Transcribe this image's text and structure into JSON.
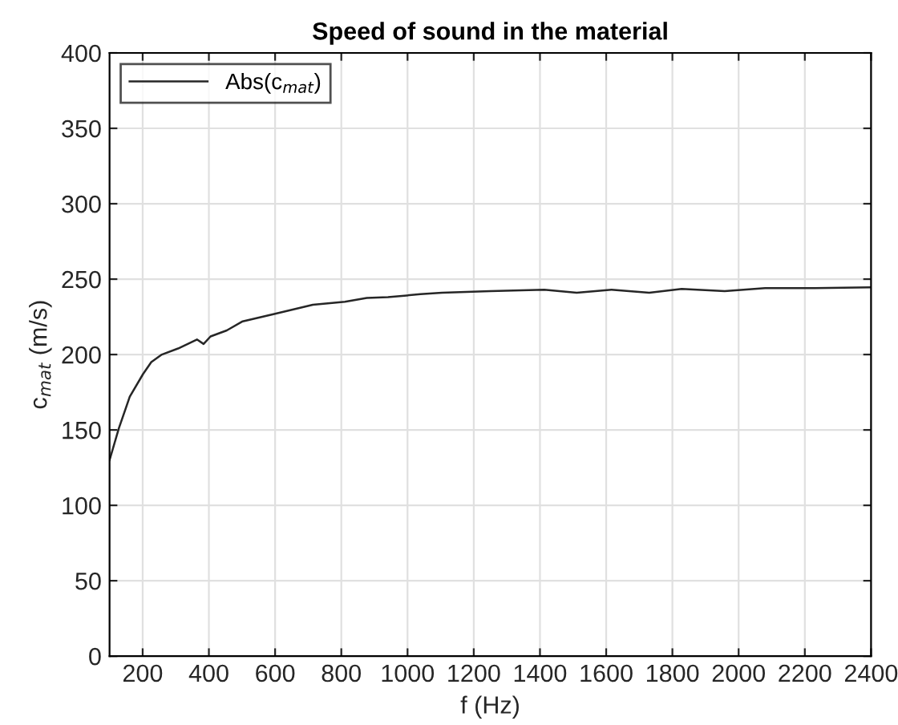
{
  "chart_data": {
    "type": "line",
    "title": "Speed of sound in the material",
    "xlabel": "f (Hz)",
    "ylabel": "c$_{mat}$ (m/s)",
    "series": [
      {
        "name": "Abs(c$_{mat}$)",
        "color": "#262626",
        "x": [
          100,
          128,
          161,
          201,
          226,
          258,
          307,
          364,
          384,
          405,
          454,
          502,
          600,
          714,
          811,
          877,
          941,
          1039,
          1104,
          1250,
          1413,
          1511,
          1616,
          1730,
          1828,
          1958,
          2080,
          2210,
          2400
        ],
        "values": [
          130,
          151,
          172,
          187,
          195,
          200,
          204,
          210,
          207,
          212,
          216,
          222,
          227,
          233,
          235,
          237.5,
          238,
          240,
          241,
          242,
          243,
          241,
          243,
          241,
          243.5,
          242,
          244,
          244,
          244.5
        ]
      }
    ],
    "xlim": [
      100,
      2400
    ],
    "xticks": [
      200,
      400,
      600,
      800,
      1000,
      1200,
      1400,
      1600,
      1800,
      2000,
      2200,
      2400
    ],
    "ylim": [
      0,
      400
    ],
    "yticks": [
      0,
      50,
      100,
      150,
      200,
      250,
      300,
      350,
      400
    ],
    "grid": true,
    "legend": "top left",
    "line_style": "solid",
    "marker": "none"
  }
}
